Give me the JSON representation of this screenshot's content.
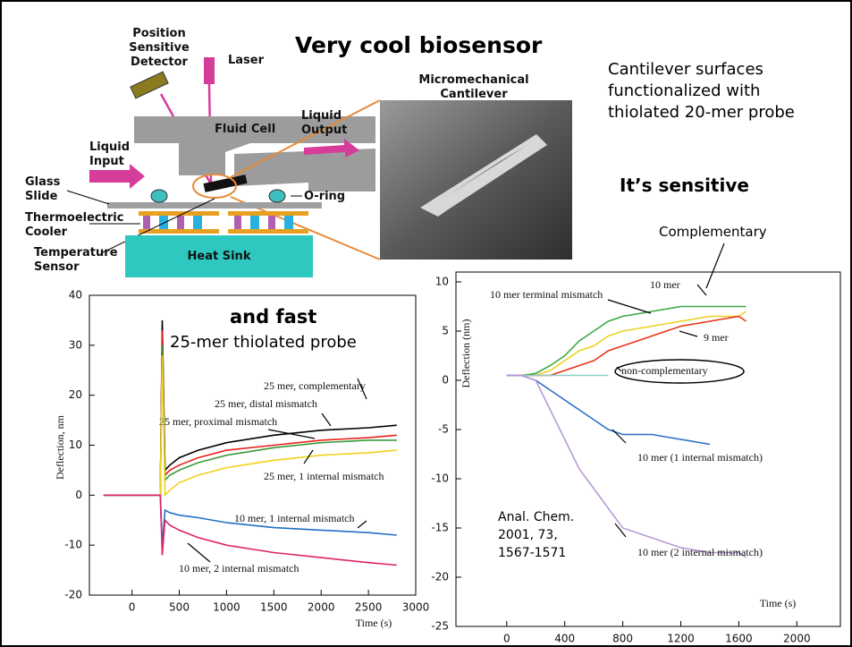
{
  "slide": {
    "title": "Very cool biosensor",
    "description": "Cantilever surfaces functionalized with thiolated 20-mer probe",
    "sensitive": "It’s sensitive",
    "complementary": "Complementary",
    "fast": "and fast",
    "probe": "25-mer thiolated probe",
    "citation": [
      "Anal. Chem.",
      "2001, 73,",
      "1567-1571"
    ]
  },
  "diagram": {
    "detector": "Position Sensitive Detector",
    "laser": "Laser",
    "fluid_cell": "Fluid Cell",
    "liquid_output": "Liquid Output",
    "liquid_input": "Liquid Input",
    "glass_slide": "Glass Slide",
    "o_ring": "O-ring",
    "cooler": "Thermoelectric Cooler",
    "temp_sensor": "Temperature Sensor",
    "heat_sink": "Heat Sink",
    "cantilever": "Micromechanical Cantilever"
  },
  "chart_data": [
    {
      "type": "line",
      "x_label": "Time (s)",
      "y_label": "Deflection, nm",
      "xlim": [
        -450,
        3000
      ],
      "xticks": [
        0,
        500,
        1000,
        1500,
        2000,
        2500,
        3000
      ],
      "ylim": [
        -20,
        40
      ],
      "yticks": [
        -20,
        -10,
        0,
        10,
        20,
        30,
        40
      ],
      "x": [
        -300,
        0,
        250,
        300,
        320,
        350,
        400,
        500,
        700,
        1000,
        1500,
        2000,
        2500,
        2800
      ],
      "series": [
        {
          "name": "25 mer, complementary",
          "color": "#000000",
          "values": [
            0,
            0,
            0,
            0,
            35,
            5,
            6,
            7.5,
            9,
            10.5,
            12,
            13,
            13.5,
            14
          ]
        },
        {
          "name": "25 mer, distal mismatch",
          "color": "#e8201a",
          "values": [
            0,
            0,
            0,
            0,
            33,
            4,
            5,
            6,
            7.5,
            9,
            10,
            11,
            11.5,
            12
          ]
        },
        {
          "name": "25 mer, proximal mismatch",
          "color": "#3c9a3c",
          "values": [
            0,
            0,
            0,
            0,
            30,
            3,
            4,
            5,
            6.5,
            8,
            9.5,
            10.5,
            11,
            11
          ]
        },
        {
          "name": "25 mer, 1 internal mismatch",
          "color": "#f2d21a",
          "values": [
            0,
            0,
            0,
            0,
            28,
            0,
            1,
            2.5,
            4,
            5.5,
            7,
            8,
            8.5,
            9
          ]
        },
        {
          "name": "10 mer, 1 internal mismatch",
          "color": "#1f6fc4",
          "values": [
            0,
            0,
            0,
            0,
            -10,
            -3,
            -3.5,
            -4,
            -4.5,
            -5.5,
            -6.5,
            -7,
            -7.5,
            -8
          ]
        },
        {
          "name": "10 mer, 2 internal mismatch",
          "color": "#e0226a",
          "values": [
            0,
            0,
            0,
            0,
            -12,
            -5,
            -6,
            -7,
            -8.5,
            -10,
            -11.5,
            -12.5,
            -13.5,
            -14
          ]
        }
      ]
    },
    {
      "type": "line",
      "x_label": "Time (s)",
      "y_label": "Deflection (nm)",
      "xlim": [
        -350,
        2300
      ],
      "xticks": [
        0,
        400,
        800,
        1200,
        1600,
        2000
      ],
      "ylim": [
        -25,
        11
      ],
      "yticks": [
        -25,
        -20,
        -15,
        -10,
        -5,
        0,
        5,
        10
      ],
      "x": [
        0,
        100,
        200,
        300,
        400,
        500,
        600,
        700,
        800,
        1000,
        1200,
        1400,
        1600,
        1650
      ],
      "series": [
        {
          "name": "10 mer",
          "color": "#3aa845",
          "values": [
            0.5,
            0.5,
            0.7,
            1.5,
            2.5,
            4,
            5,
            6,
            6.5,
            7,
            7.5,
            7.5,
            7.5,
            7.5
          ]
        },
        {
          "name": "10 mer terminal mismatch",
          "color": "#f0d020",
          "values": [
            0.5,
            0.5,
            0.5,
            1,
            2,
            3,
            3.5,
            4.5,
            5,
            5.5,
            6,
            6.5,
            6.5,
            7
          ]
        },
        {
          "name": "9 mer",
          "color": "#e8351a",
          "values": [
            0.5,
            0.5,
            0.5,
            0.5,
            1,
            1.5,
            2,
            3,
            3.5,
            4.5,
            5.5,
            6,
            6.5,
            6
          ]
        },
        {
          "name": "non-complementary",
          "color": "#8fd0c8",
          "values": [
            0.5,
            0.5,
            0.5,
            0.5,
            0.5,
            0.5,
            0.5,
            0.5,
            null,
            null,
            null,
            null,
            null,
            null
          ]
        },
        {
          "name": "10 mer (1 internal mismatch)",
          "color": "#2a70c8",
          "values": [
            0.5,
            0.5,
            0,
            -1,
            -2,
            -3,
            -4,
            -5,
            -5.5,
            -5.5,
            -6,
            -6.5,
            null,
            null
          ]
        },
        {
          "name": "10 mer (2 internal mismatch)",
          "color": "#b99ad8",
          "values": [
            0.5,
            0.5,
            0,
            -3,
            -6,
            -9,
            -11,
            -13,
            -15,
            -16,
            -17,
            -17.5,
            -17.5,
            -18
          ]
        }
      ]
    }
  ]
}
